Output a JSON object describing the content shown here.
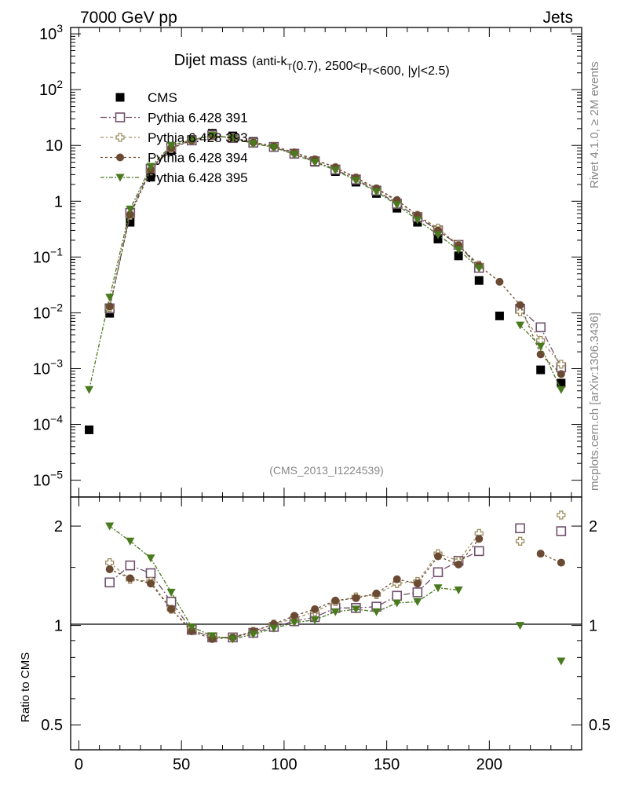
{
  "header": {
    "energy": "7000 GeV pp",
    "category": "Jets",
    "title_main": "Dijet mass",
    "title_sub": "(anti-kT(0.7), 2500<pT<600, |y|<2.5)",
    "analysis_id": "(CMS_2013_I1224539)",
    "side_rivet": "Rivet 4.1.0, ≥ 2M events",
    "side_mcplots": "mcplots.cern.ch [arXiv:1306.3436]"
  },
  "chart_data": {
    "type": "line",
    "x": [
      5,
      15,
      25,
      35,
      45,
      55,
      65,
      75,
      85,
      95,
      105,
      115,
      125,
      135,
      145,
      155,
      165,
      175,
      185,
      195,
      205,
      215,
      225,
      235
    ],
    "xlim": [
      -4,
      245
    ],
    "xticks": [
      "0",
      "50",
      "100",
      "150",
      "200"
    ],
    "main": {
      "yscale": "log",
      "ylim": [
        5e-06,
        1300
      ],
      "yticks": [
        "10^-5",
        "10^-4",
        "10^-3",
        "10^-2",
        "10^-1",
        "1",
        "10",
        "10^2",
        "10^3"
      ]
    },
    "ratio": {
      "ylabel": "Ratio to CMS",
      "ylim": [
        0.42,
        2.45
      ],
      "yticks": [
        "0.5",
        "1",
        "2"
      ]
    },
    "series": [
      {
        "name": "CMS",
        "color": "#000000",
        "marker": "square-filled",
        "values": [
          8e-05,
          0.0098,
          0.42,
          2.7,
          8.0,
          12.8,
          16.5,
          14.8,
          11.8,
          9.5,
          7.0,
          5.0,
          3.4,
          2.2,
          1.38,
          0.75,
          0.42,
          0.21,
          0.105,
          0.038,
          0.0088,
          null,
          0.00095,
          0.00055
        ],
        "ratio": []
      },
      {
        "name": "Pythia 6.428 391",
        "color": "#70506e",
        "marker": "square-open",
        "values": [
          null,
          0.012,
          0.62,
          3.8,
          9.4,
          12.3,
          15.2,
          13.6,
          11.2,
          9.4,
          7.1,
          5.2,
          3.7,
          2.45,
          1.55,
          0.9,
          0.52,
          0.3,
          0.165,
          0.064,
          null,
          0.0118,
          0.0055,
          0.00105
        ],
        "ratio": [
          null,
          1.35,
          1.52,
          1.44,
          1.18,
          0.97,
          0.92,
          0.92,
          0.95,
          0.99,
          1.03,
          1.06,
          1.13,
          1.13,
          1.14,
          1.23,
          1.26,
          1.45,
          1.57,
          1.68,
          null,
          1.97,
          null,
          1.93
        ]
      },
      {
        "name": "Pythia 6.428 393",
        "color": "#9c8e60",
        "marker": "plus-open",
        "values": [
          null,
          0.0125,
          0.56,
          3.5,
          8.8,
          12.4,
          15.0,
          13.7,
          11.3,
          9.6,
          7.3,
          5.5,
          4.0,
          2.6,
          1.65,
          1.0,
          0.56,
          0.33,
          0.165,
          0.072,
          null,
          0.0105,
          0.0032,
          0.0012
        ],
        "ratio": [
          null,
          1.55,
          1.38,
          1.36,
          1.12,
          0.97,
          0.92,
          0.92,
          0.96,
          1.01,
          1.05,
          1.1,
          1.18,
          1.22,
          1.24,
          1.34,
          1.36,
          1.65,
          1.57,
          1.9,
          null,
          1.8,
          null,
          2.16
        ]
      },
      {
        "name": "Pythia 6.428 394",
        "color": "#6b4a33",
        "marker": "circle-filled",
        "values": [
          null,
          0.013,
          0.58,
          3.6,
          9.0,
          12.2,
          15.0,
          13.6,
          11.4,
          9.7,
          7.5,
          5.6,
          4.05,
          2.65,
          1.7,
          1.05,
          0.56,
          0.3,
          0.162,
          0.07,
          0.036,
          0.0138,
          0.0018,
          0.0008
        ],
        "ratio": [
          null,
          1.48,
          1.39,
          1.34,
          1.12,
          0.96,
          0.91,
          0.92,
          0.96,
          1.01,
          1.07,
          1.12,
          1.19,
          1.21,
          1.25,
          1.38,
          1.34,
          1.62,
          1.53,
          1.83,
          null,
          null,
          1.65,
          1.55
        ]
      },
      {
        "name": "Pythia 6.428 395",
        "color": "#4a7a1e",
        "marker": "triangle-down-filled",
        "values": [
          0.00042,
          0.019,
          0.72,
          4.2,
          10.0,
          12.6,
          15.1,
          13.5,
          10.8,
          9.2,
          6.9,
          5.0,
          3.6,
          2.35,
          1.48,
          0.86,
          0.46,
          0.25,
          0.135,
          0.063,
          null,
          0.006,
          0.0025,
          0.00042
        ],
        "ratio": [
          null,
          2.0,
          1.8,
          1.6,
          1.26,
          0.99,
          0.93,
          0.91,
          0.94,
          0.98,
          1.02,
          1.04,
          1.1,
          1.12,
          1.1,
          1.17,
          1.18,
          1.3,
          1.28,
          null,
          null,
          1.0,
          null,
          0.78
        ]
      }
    ]
  }
}
